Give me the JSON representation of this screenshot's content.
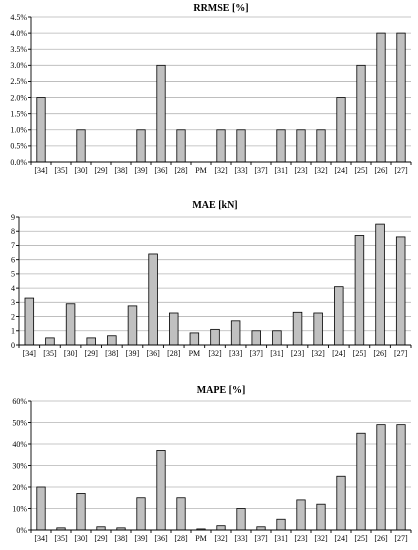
{
  "chart_data": [
    {
      "type": "bar",
      "title": "RRMSE [%]",
      "xlabel": "",
      "ylabel": "",
      "categories": [
        "[34]",
        "[35]",
        "[30]",
        "[29]",
        "[38]",
        "[39]",
        "[36]",
        "[28]",
        "PM",
        "[32]",
        "[33]",
        "[37]",
        "[31]",
        "[23]",
        "[32]",
        "[24]",
        "[25]",
        "[26]",
        "[27]"
      ],
      "values": [
        2.0,
        0,
        1.0,
        0,
        0,
        1.0,
        3.0,
        1.0,
        0,
        1.0,
        1.0,
        0,
        1.0,
        1.0,
        1.0,
        2.0,
        3.0,
        4.0,
        4.0
      ],
      "ylim": [
        0,
        4.5
      ],
      "yticks": [
        0,
        0.5,
        1.0,
        1.5,
        2.0,
        2.5,
        3.0,
        3.5,
        4.0,
        4.5
      ],
      "ytick_labels": [
        "0.0%",
        "0.5%",
        "1.0%",
        "1.5%",
        "2.0%",
        "2.5%",
        "3.0%",
        "3.5%",
        "4.0%",
        "4.5%"
      ],
      "grid": true,
      "bar_color": "#c0c0c0"
    },
    {
      "type": "bar",
      "title": "MAE [kN]",
      "xlabel": "",
      "ylabel": "",
      "categories": [
        "[34]",
        "[35]",
        "[30]",
        "[29]",
        "[38]",
        "[39]",
        "[36]",
        "[28]",
        "PM",
        "[32]",
        "[33]",
        "[37]",
        "[31]",
        "[23]",
        "[32]",
        "[24]",
        "[25]",
        "[26]",
        "[27]"
      ],
      "values": [
        3.3,
        0.5,
        2.9,
        0.5,
        0.65,
        2.75,
        6.4,
        2.25,
        0.85,
        1.1,
        1.7,
        1.0,
        1.0,
        2.3,
        2.25,
        4.1,
        7.7,
        8.5,
        7.6
      ],
      "ylim": [
        0,
        9
      ],
      "yticks": [
        0,
        1,
        2,
        3,
        4,
        5,
        6,
        7,
        8,
        9
      ],
      "ytick_labels": [
        "0",
        "1",
        "2",
        "3",
        "4",
        "5",
        "6",
        "7",
        "8",
        "9"
      ],
      "grid": true,
      "bar_color": "#c0c0c0"
    },
    {
      "type": "bar",
      "title": "MAPE [%]",
      "xlabel": "",
      "ylabel": "",
      "categories": [
        "[34]",
        "[35]",
        "[30]",
        "[29]",
        "[38]",
        "[39]",
        "[36]",
        "[28]",
        "PM",
        "[32]",
        "[33]",
        "[37]",
        "[31]",
        "[23]",
        "[32]",
        "[24]",
        "[25]",
        "[26]",
        "[27]"
      ],
      "values": [
        20,
        1,
        17,
        1.5,
        1,
        15,
        37,
        15,
        0.5,
        2,
        10,
        1.5,
        5,
        14,
        12,
        25,
        45,
        49,
        49
      ],
      "ylim": [
        0,
        60
      ],
      "yticks": [
        0,
        10,
        20,
        30,
        40,
        50,
        60
      ],
      "ytick_labels": [
        "0%",
        "10%",
        "20%",
        "30%",
        "40%",
        "50%",
        "60%"
      ],
      "grid": true,
      "bar_color": "#c0c0c0"
    }
  ]
}
